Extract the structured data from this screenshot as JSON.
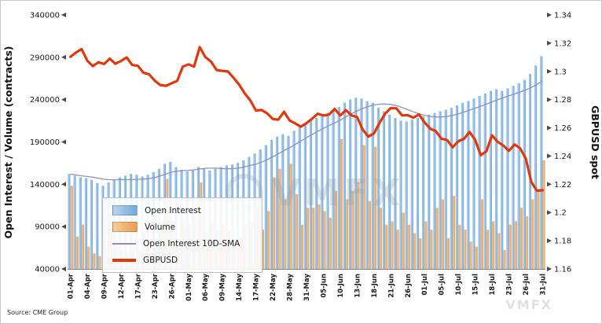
{
  "axes": {
    "left_title": "Open Interest / Volume (contracts)",
    "right_title": "GBPUSD spot"
  },
  "legend": {
    "items": [
      {
        "label": "Open Interest",
        "swatch": "gradient-bar",
        "color_key": "open_interest"
      },
      {
        "label": "Volume",
        "swatch": "gradient-bar",
        "color_key": "volume"
      },
      {
        "label": "Open Interest 10D-SMA",
        "swatch": "thin-line",
        "color_key": "sma_line"
      },
      {
        "label": "GBPUSD",
        "swatch": "thick-line",
        "color_key": "gbpusd_line"
      }
    ]
  },
  "watermark": {
    "text": "VMFX"
  },
  "source": "Source: CME Group",
  "colors": {
    "open_interest": "#6FA9DC",
    "open_interest_light": "#B9D5EF",
    "volume": "#EC9B4E",
    "volume_light": "#F7CD9B",
    "sma_line": "#8F8FBF",
    "gbpusd_line": "#E0380C",
    "tick_text": "#1a1a1a",
    "axis_line": "#8c8c8c",
    "tick_marker": "#4a4a4a"
  },
  "chart_data": {
    "type": "combo",
    "title": "",
    "xlabel": "",
    "ylabel_left": "Open Interest / Volume (contracts)",
    "ylabel_right": "GBPUSD spot",
    "grid": false,
    "legend_position": "lower-left-inside",
    "x_label_every": 3,
    "y_left_range": [
      40000,
      340000
    ],
    "y_right_range": [
      1.16,
      1.34
    ],
    "y_left_ticks": [
      "340000",
      "290000",
      "240000",
      "190000",
      "140000",
      "90000",
      "40000"
    ],
    "y_right_ticks": [
      "1.34",
      "1.32",
      "1.3",
      "1.28",
      "1.26",
      "1.24",
      "1.22",
      "1.2",
      "1.18",
      "1.16"
    ],
    "x": [
      "01-Apr",
      "02-Apr",
      "03-Apr",
      "04-Apr",
      "05-Apr",
      "08-Apr",
      "09-Apr",
      "10-Apr",
      "11-Apr",
      "12-Apr",
      "15-Apr",
      "16-Apr",
      "17-Apr",
      "18-Apr",
      "22-Apr",
      "23-Apr",
      "24-Apr",
      "25-Apr",
      "26-Apr",
      "29-Apr",
      "30-Apr",
      "01-May",
      "02-May",
      "03-May",
      "06-May",
      "07-May",
      "08-May",
      "09-May",
      "10-May",
      "13-May",
      "14-May",
      "15-May",
      "16-May",
      "17-May",
      "20-May",
      "21-May",
      "22-May",
      "23-May",
      "24-May",
      "28-May",
      "29-May",
      "30-May",
      "31-May",
      "03-Jun",
      "04-Jun",
      "05-Jun",
      "06-Jun",
      "07-Jun",
      "10-Jun",
      "11-Jun",
      "12-Jun",
      "13-Jun",
      "14-Jun",
      "17-Jun",
      "18-Jun",
      "19-Jun",
      "20-Jun",
      "21-Jun",
      "24-Jun",
      "25-Jun",
      "26-Jun",
      "27-Jun",
      "28-Jun",
      "01-Jul",
      "02-Jul",
      "03-Jul",
      "05-Jul",
      "08-Jul",
      "09-Jul",
      "10-Jul",
      "11-Jul",
      "12-Jul",
      "15-Jul",
      "16-Jul",
      "17-Jul",
      "18-Jul",
      "19-Jul",
      "22-Jul",
      "23-Jul",
      "24-Jul",
      "25-Jul",
      "26-Jul",
      "29-Jul",
      "30-Jul",
      "31-Jul"
    ],
    "series": [
      {
        "name": "Open Interest",
        "type": "bar",
        "axis": "left",
        "values": [
          152000,
          150000,
          148000,
          147000,
          145000,
          141000,
          138000,
          142000,
          145000,
          148000,
          150000,
          152000,
          151000,
          149000,
          151000,
          154000,
          158000,
          164000,
          166000,
          160000,
          157000,
          155000,
          156000,
          160000,
          158000,
          156000,
          158000,
          160000,
          162000,
          163000,
          165000,
          168000,
          172000,
          176000,
          181000,
          186000,
          192000,
          196000,
          199000,
          197000,
          203000,
          208000,
          212000,
          215000,
          218000,
          221000,
          224000,
          228000,
          231000,
          236000,
          240000,
          242000,
          241000,
          238000,
          236000,
          230000,
          226000,
          222000,
          218000,
          215000,
          214000,
          216000,
          218000,
          220000,
          222000,
          224000,
          226000,
          228000,
          230000,
          233000,
          236000,
          238000,
          241000,
          244000,
          247000,
          250000,
          252000,
          250000,
          253000,
          256000,
          259000,
          263000,
          270000,
          280000,
          291000
        ]
      },
      {
        "name": "Volume",
        "type": "bar",
        "axis": "left",
        "values": [
          138000,
          78000,
          92000,
          66000,
          58000,
          55000,
          72000,
          88000,
          74000,
          62000,
          50000,
          68000,
          64000,
          82000,
          58000,
          60000,
          92000,
          146000,
          90000,
          62000,
          98000,
          92000,
          104000,
          142000,
          82000,
          96000,
          86000,
          92000,
          84000,
          70000,
          76000,
          92000,
          96000,
          112000,
          86000,
          108000,
          148000,
          158000,
          122000,
          164000,
          128000,
          92000,
          112000,
          112000,
          116000,
          108000,
          100000,
          132000,
          193000,
          122000,
          132000,
          142000,
          186000,
          120000,
          184000,
          112000,
          92000,
          96000,
          86000,
          106000,
          92000,
          82000,
          76000,
          96000,
          86000,
          112000,
          122000,
          76000,
          126000,
          92000,
          86000,
          72000,
          66000,
          122000,
          86000,
          96000,
          82000,
          62000,
          92000,
          96000,
          112000,
          102000,
          122000,
          132000,
          168000
        ]
      },
      {
        "name": "Open Interest 10D-SMA",
        "type": "line",
        "axis": "left",
        "derived": "10-day moving average of Open Interest"
      },
      {
        "name": "GBPUSD",
        "type": "line",
        "axis": "right",
        "values": [
          1.3103,
          1.3134,
          1.3158,
          1.3076,
          1.3037,
          1.3065,
          1.3052,
          1.309,
          1.3054,
          1.3074,
          1.3099,
          1.3045,
          1.304,
          1.299,
          1.298,
          1.2934,
          1.2903,
          1.2898,
          1.2915,
          1.2933,
          1.3034,
          1.305,
          1.3034,
          1.3172,
          1.3102,
          1.307,
          1.301,
          1.3004,
          1.3,
          1.2956,
          1.2907,
          1.2845,
          1.2794,
          1.2723,
          1.2726,
          1.2703,
          1.2663,
          1.2658,
          1.2714,
          1.2652,
          1.2631,
          1.2608,
          1.2633,
          1.2665,
          1.27,
          1.2687,
          1.2694,
          1.2734,
          1.2687,
          1.2725,
          1.2689,
          1.2676,
          1.2588,
          1.2538,
          1.256,
          1.2636,
          1.2701,
          1.274,
          1.2738,
          1.2688,
          1.269,
          1.2672,
          1.2695,
          1.2638,
          1.2594,
          1.2577,
          1.2523,
          1.2514,
          1.2462,
          1.2505,
          1.2522,
          1.2571,
          1.2515,
          1.2406,
          1.2434,
          1.2547,
          1.2501,
          1.2475,
          1.2437,
          1.2482,
          1.2455,
          1.2383,
          1.2216,
          1.2154,
          1.2158
        ]
      }
    ]
  }
}
